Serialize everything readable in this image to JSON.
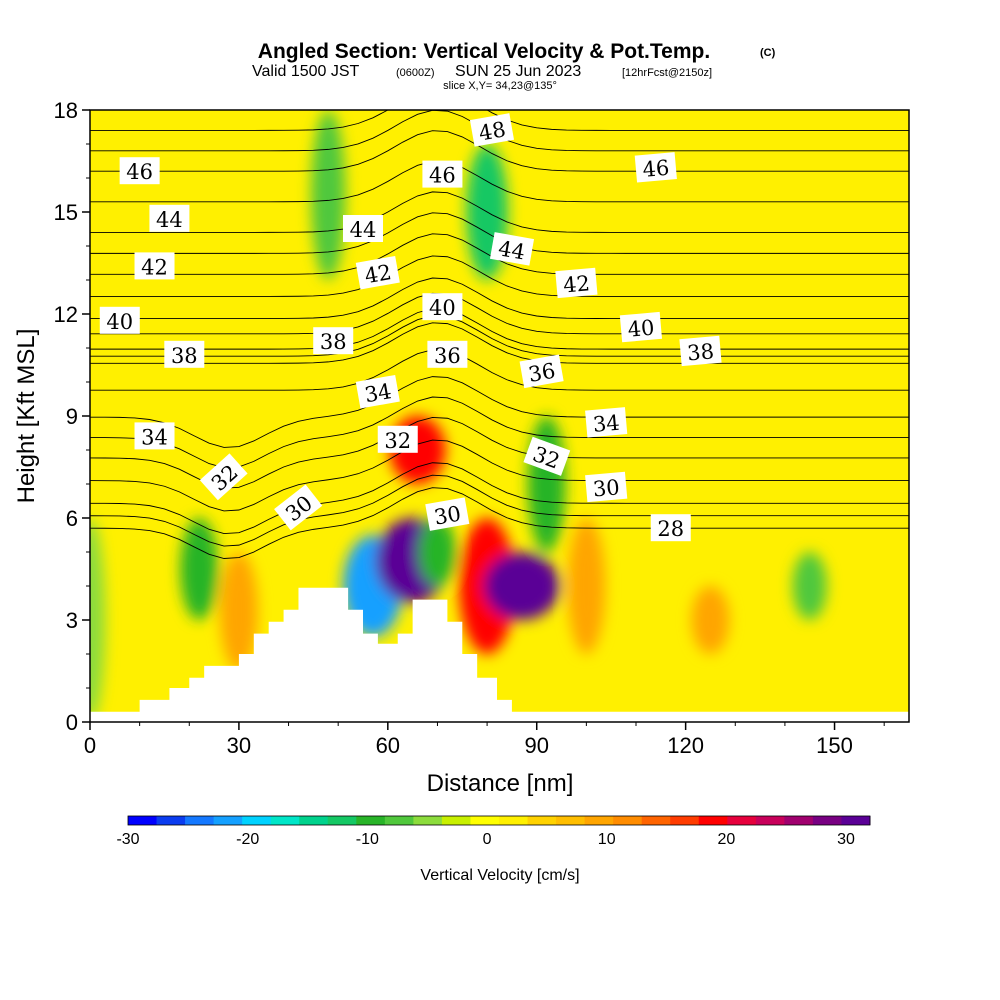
{
  "title": {
    "main": "Angled Section: Vertical Velocity & Pot.Temp.",
    "copyright": "(C)",
    "valid_prefix": "Valid 1500 JST",
    "valid_utc": "(0600Z)",
    "valid_date": "SUN 25 Jun 2023",
    "forecast": "[12hrFcst@2150z]",
    "slice": "slice X,Y= 34,23@135°"
  },
  "colors": {
    "terrain": "#ffffff",
    "contour_line": "#000000",
    "palette": [
      "#0000ff",
      "#0a3cf0",
      "#1478ff",
      "#14a0ff",
      "#00d2ff",
      "#00e6c8",
      "#00d28c",
      "#14c864",
      "#28b428",
      "#50c83c",
      "#8cdc3c",
      "#c8f000",
      "#ffff00",
      "#fff000",
      "#ffd200",
      "#ffbe00",
      "#ffa500",
      "#ff8c00",
      "#ff6400",
      "#ff3c00",
      "#ff0000",
      "#e6003c",
      "#c8005a",
      "#a0006e",
      "#780082",
      "#5a0096"
    ]
  },
  "chart_data": {
    "type": "heatmap",
    "xlabel": "Distance [nm]",
    "ylabel": "Height [Kft MSL]",
    "xlim": [
      0,
      165
    ],
    "ylim": [
      0,
      18
    ],
    "x_ticks": [
      0,
      30,
      60,
      90,
      120,
      150
    ],
    "y_ticks": [
      0,
      3,
      6,
      9,
      12,
      15,
      18
    ],
    "colorbar": {
      "title": "Vertical Velocity [cm/s]",
      "range": [
        -30,
        32
      ],
      "ticks": [
        -30,
        -20,
        -10,
        0,
        10,
        20,
        30
      ]
    },
    "terrain_profile": [
      {
        "x": 0,
        "h": 0.3
      },
      {
        "x": 10,
        "h": 0.3
      },
      {
        "x": 10,
        "h": 0.65
      },
      {
        "x": 16,
        "h": 0.65
      },
      {
        "x": 16,
        "h": 1.0
      },
      {
        "x": 20,
        "h": 1.0
      },
      {
        "x": 20,
        "h": 1.3
      },
      {
        "x": 23,
        "h": 1.3
      },
      {
        "x": 23,
        "h": 1.65
      },
      {
        "x": 30,
        "h": 1.65
      },
      {
        "x": 30,
        "h": 2.0
      },
      {
        "x": 33,
        "h": 2.0
      },
      {
        "x": 33,
        "h": 2.6
      },
      {
        "x": 36,
        "h": 2.6
      },
      {
        "x": 36,
        "h": 2.95
      },
      {
        "x": 39,
        "h": 2.95
      },
      {
        "x": 39,
        "h": 3.3
      },
      {
        "x": 42,
        "h": 3.3
      },
      {
        "x": 42,
        "h": 3.95
      },
      {
        "x": 52,
        "h": 3.95
      },
      {
        "x": 52,
        "h": 3.3
      },
      {
        "x": 55,
        "h": 3.3
      },
      {
        "x": 55,
        "h": 2.6
      },
      {
        "x": 58,
        "h": 2.6
      },
      {
        "x": 58,
        "h": 2.3
      },
      {
        "x": 62,
        "h": 2.3
      },
      {
        "x": 62,
        "h": 2.6
      },
      {
        "x": 65,
        "h": 2.6
      },
      {
        "x": 65,
        "h": 3.6
      },
      {
        "x": 72,
        "h": 3.6
      },
      {
        "x": 72,
        "h": 2.95
      },
      {
        "x": 75,
        "h": 2.95
      },
      {
        "x": 75,
        "h": 2.0
      },
      {
        "x": 78,
        "h": 2.0
      },
      {
        "x": 78,
        "h": 1.3
      },
      {
        "x": 82,
        "h": 1.3
      },
      {
        "x": 82,
        "h": 0.65
      },
      {
        "x": 85,
        "h": 0.65
      },
      {
        "x": 85,
        "h": 0.3
      },
      {
        "x": 165,
        "h": 0.3
      }
    ],
    "velocity_cells": [
      {
        "x": 0,
        "h_range": [
          0,
          6
        ],
        "w": -6
      },
      {
        "x": 8,
        "h_range": [
          6,
          18
        ],
        "w": 3
      },
      {
        "x": 22,
        "h_range": [
          3,
          6
        ],
        "w": -10
      },
      {
        "x": 30,
        "h_range": [
          1.5,
          5
        ],
        "w": 10
      },
      {
        "x": 48,
        "h_range": [
          13,
          18
        ],
        "w": -8
      },
      {
        "x": 57,
        "h_range": [
          2.5,
          5.5
        ],
        "w": -22
      },
      {
        "x": 65,
        "h_range": [
          3.5,
          6
        ],
        "w": 30
      },
      {
        "x": 66,
        "h_range": [
          7,
          9
        ],
        "w": 20
      },
      {
        "x": 70,
        "h_range": [
          4,
          6
        ],
        "w": -10
      },
      {
        "x": 80,
        "h_range": [
          2,
          6
        ],
        "w": 20
      },
      {
        "x": 87,
        "h_range": [
          3,
          5
        ],
        "w": 32
      },
      {
        "x": 80,
        "h_range": [
          13,
          17
        ],
        "w": -12
      },
      {
        "x": 92,
        "h_range": [
          5,
          9
        ],
        "w": -10
      },
      {
        "x": 100,
        "h_range": [
          2,
          6
        ],
        "w": 10
      },
      {
        "x": 125,
        "h_range": [
          2,
          4
        ],
        "w": 10
      },
      {
        "x": 145,
        "h_range": [
          3,
          5
        ],
        "w": -8
      }
    ],
    "contour_labels": [
      {
        "text": "46",
        "x": 10,
        "y": 16.2,
        "rot": 0
      },
      {
        "text": "44",
        "x": 16,
        "y": 14.8,
        "rot": 0
      },
      {
        "text": "42",
        "x": 13,
        "y": 13.4,
        "rot": 0
      },
      {
        "text": "40",
        "x": 6,
        "y": 11.8,
        "rot": 0
      },
      {
        "text": "38",
        "x": 19,
        "y": 10.8,
        "rot": 0
      },
      {
        "text": "34",
        "x": 13,
        "y": 8.4,
        "rot": 0
      },
      {
        "text": "32",
        "x": 27,
        "y": 7.2,
        "rot": -42
      },
      {
        "text": "30",
        "x": 42,
        "y": 6.3,
        "rot": -38
      },
      {
        "text": "38",
        "x": 49,
        "y": 11.2,
        "rot": 0
      },
      {
        "text": "44",
        "x": 55,
        "y": 14.5,
        "rot": 0
      },
      {
        "text": "42",
        "x": 58,
        "y": 13.2,
        "rot": -10
      },
      {
        "text": "34",
        "x": 58,
        "y": 9.7,
        "rot": -10
      },
      {
        "text": "32",
        "x": 62,
        "y": 8.3,
        "rot": 0
      },
      {
        "text": "46",
        "x": 71,
        "y": 16.1,
        "rot": 0
      },
      {
        "text": "40",
        "x": 71,
        "y": 12.2,
        "rot": 0
      },
      {
        "text": "36",
        "x": 72,
        "y": 10.8,
        "rot": 0
      },
      {
        "text": "30",
        "x": 72,
        "y": 6.1,
        "rot": -10
      },
      {
        "text": "48",
        "x": 81,
        "y": 17.4,
        "rot": -10
      },
      {
        "text": "44",
        "x": 85,
        "y": 13.9,
        "rot": 10
      },
      {
        "text": "36",
        "x": 91,
        "y": 10.3,
        "rot": -10
      },
      {
        "text": "32",
        "x": 92,
        "y": 7.8,
        "rot": 20
      },
      {
        "text": "42",
        "x": 98,
        "y": 12.9,
        "rot": -5
      },
      {
        "text": "34",
        "x": 104,
        "y": 8.8,
        "rot": -5
      },
      {
        "text": "30",
        "x": 104,
        "y": 6.9,
        "rot": -5
      },
      {
        "text": "46",
        "x": 114,
        "y": 16.3,
        "rot": -5
      },
      {
        "text": "40",
        "x": 111,
        "y": 11.6,
        "rot": -5
      },
      {
        "text": "38",
        "x": 123,
        "y": 10.9,
        "rot": -5
      },
      {
        "text": "28",
        "x": 117,
        "y": 5.7,
        "rot": 0
      }
    ]
  }
}
